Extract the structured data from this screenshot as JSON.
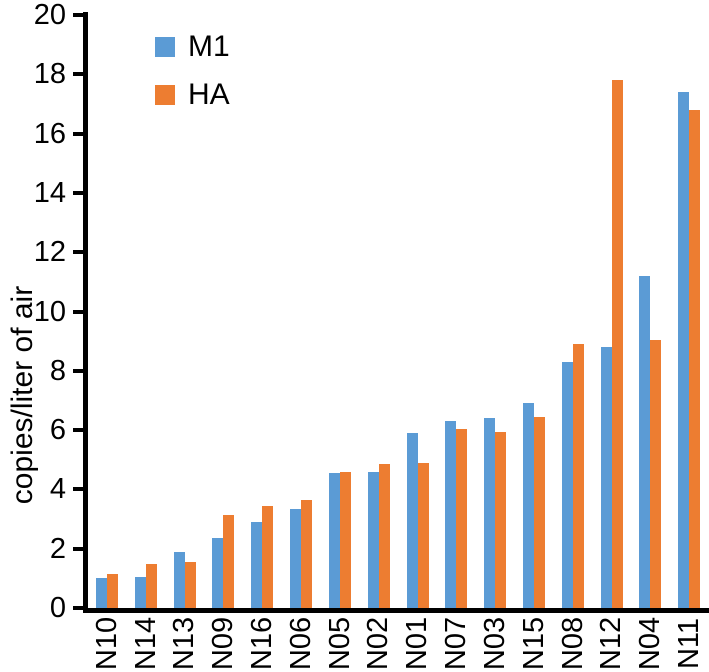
{
  "chart_data": {
    "type": "bar",
    "title": "",
    "xlabel": "",
    "ylabel": "copies/liter of air",
    "ylim": [
      0,
      20
    ],
    "ytick_step": 2,
    "ytick_labels": [
      "0",
      "2",
      "4",
      "6",
      "8",
      "10",
      "12",
      "14",
      "16",
      "18",
      "20"
    ],
    "grid": false,
    "legend_position": "top-left-inside",
    "axis_color": "#000000",
    "categories": [
      "N10",
      "N14",
      "N13",
      "N09",
      "N16",
      "N06",
      "N05",
      "N02",
      "N01",
      "N07",
      "N03",
      "N15",
      "N08",
      "N12",
      "N04",
      "N11"
    ],
    "series": [
      {
        "name": "M1",
        "color": "#5B9BD5",
        "values": [
          1.0,
          1.05,
          1.9,
          2.35,
          2.9,
          3.35,
          4.55,
          4.6,
          5.9,
          6.3,
          6.4,
          6.9,
          8.3,
          8.8,
          11.2,
          17.4
        ]
      },
      {
        "name": "HA",
        "color": "#ED7D31",
        "values": [
          1.15,
          1.5,
          1.55,
          3.15,
          3.45,
          3.65,
          4.6,
          4.85,
          4.9,
          6.05,
          5.95,
          6.45,
          8.9,
          17.8,
          9.05,
          16.8
        ]
      }
    ]
  }
}
